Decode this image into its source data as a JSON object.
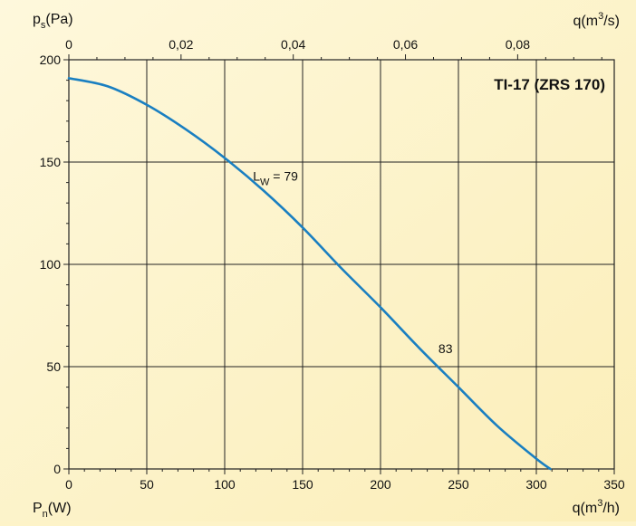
{
  "chart_data": {
    "type": "line",
    "title": "TI-17 (ZRS 170)",
    "bottom_axis": {
      "label": "q(m",
      "label_sup": "3",
      "label_end": "/h)",
      "range": [
        0,
        350
      ],
      "ticks": [
        0,
        50,
        100,
        150,
        200,
        250,
        300,
        350
      ],
      "tick_labels": [
        "0",
        "50",
        "100",
        "150",
        "200",
        "250",
        "300",
        "350"
      ]
    },
    "top_axis": {
      "label": "q(m",
      "label_sup": "3",
      "label_end": "/s)",
      "range": [
        0,
        0.09722
      ],
      "ticks": [
        0,
        0.02,
        0.04,
        0.06,
        0.08
      ],
      "tick_labels": [
        "0",
        "0,02",
        "0,04",
        "0,06",
        "0,08"
      ]
    },
    "left_axis": {
      "label": "p",
      "label_sub": "s",
      "label_end": "(Pa)",
      "range": [
        0,
        200
      ],
      "ticks": [
        0,
        50,
        100,
        150,
        200
      ],
      "tick_labels": [
        "0",
        "50",
        "100",
        "150",
        "200"
      ]
    },
    "bottom_left_label": {
      "label": "P",
      "label_sub": "n",
      "label_end": "(W)"
    },
    "grid": true,
    "series": [
      {
        "color": "#1a7fc1",
        "x": [
          0,
          25,
          50,
          75,
          100,
          125,
          150,
          175,
          200,
          225,
          250,
          275,
          300,
          309
        ],
        "y": [
          191,
          187,
          178,
          166,
          152,
          136,
          118,
          98,
          79,
          59,
          40,
          21,
          5,
          0
        ]
      }
    ],
    "annotations": [
      {
        "text": "L",
        "sub": "W",
        "text_end": " = 79",
        "x": 117,
        "y": 145
      },
      {
        "text": "83",
        "text_end": "",
        "x": 236,
        "y": 53
      }
    ]
  }
}
